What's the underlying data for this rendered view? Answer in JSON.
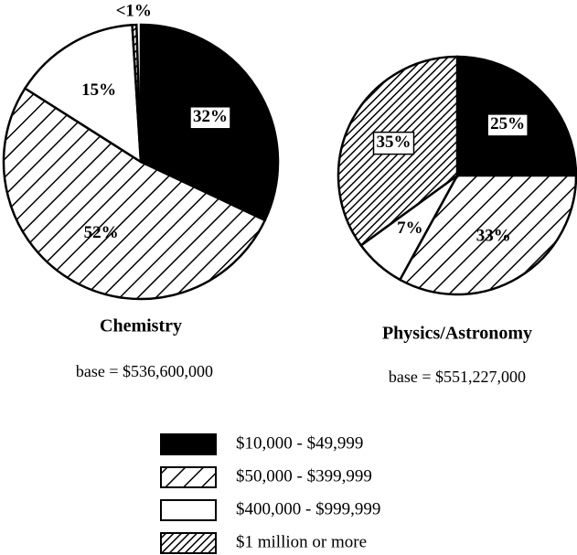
{
  "chart_data": [
    {
      "type": "pie",
      "title": "Chemistry",
      "subtitle": "base = $536,600,000",
      "categories": [
        "$10,000 - $49,999",
        "$50,000 - $399,999",
        "$400,000 - $999,999",
        "$1 million or more"
      ],
      "values": [
        32,
        52,
        15,
        0.5
      ],
      "value_labels": [
        "32%",
        "52%",
        "15%",
        "<1%"
      ],
      "fills": [
        "solid-black",
        "hatch",
        "white",
        "dense-hatch"
      ]
    },
    {
      "type": "pie",
      "title": "Physics/Astronomy",
      "subtitle": "base = $551,227,000",
      "categories": [
        "$10,000 - $49,999",
        "$50,000 - $399,999",
        "$400,000 - $999,999",
        "$1 million or more"
      ],
      "values": [
        25,
        33,
        7,
        35
      ],
      "value_labels": [
        "25%",
        "33%",
        "7%",
        "35%"
      ],
      "fills": [
        "solid-black",
        "hatch",
        "white",
        "dense-hatch"
      ]
    }
  ]
}
